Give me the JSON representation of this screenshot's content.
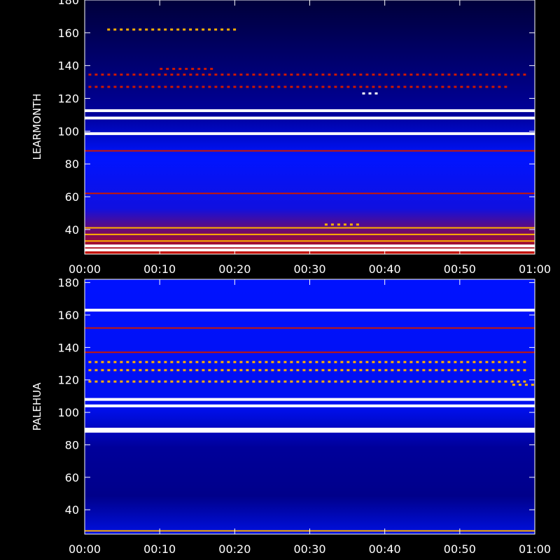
{
  "chart_data": [
    {
      "type": "heatmap",
      "ylabel": "LEARMONTH",
      "ylim": [
        25,
        180
      ],
      "yticks": [
        40,
        60,
        80,
        100,
        120,
        140,
        160,
        180
      ],
      "xticks": [
        "00:00",
        "00:10",
        "00:20",
        "00:30",
        "00:40",
        "00:50",
        "01:00"
      ],
      "xlim_minutes": [
        0,
        60
      ],
      "colormap": [
        "#00003a",
        "#0000ff",
        "#cc1800",
        "#ffb000",
        "#ffffff"
      ],
      "bands": [
        {
          "freq": 112.5,
          "intensity": 0.82
        },
        {
          "freq": 108,
          "intensity": 0.78
        },
        {
          "freq": 98.5,
          "intensity": 0.85
        },
        {
          "freq": 88,
          "intensity": 0.35
        },
        {
          "freq": 62,
          "intensity": 0.42
        },
        {
          "freq": 41,
          "intensity": 0.55
        },
        {
          "freq": 37,
          "intensity": 0.6
        },
        {
          "freq": 33,
          "intensity": 0.7
        },
        {
          "freq": 30,
          "intensity": 0.82
        },
        {
          "freq": 27.5,
          "intensity": 0.9
        }
      ],
      "bursts": [
        {
          "freq": 162,
          "t0": 3,
          "t1": 20,
          "intensity": 0.7
        },
        {
          "freq": 134.5,
          "t0": 0.5,
          "t1": 59,
          "intensity": 0.4
        },
        {
          "freq": 127,
          "t0": 0.5,
          "t1": 56,
          "intensity": 0.38
        },
        {
          "freq": 138,
          "t0": 10,
          "t1": 17,
          "intensity": 0.45
        },
        {
          "freq": 123,
          "t0": 37,
          "t1": 39,
          "intensity": 0.8
        },
        {
          "freq": 43,
          "t0": 32,
          "t1": 37,
          "intensity": 0.7
        }
      ]
    },
    {
      "type": "heatmap",
      "ylabel": "PALEHUA",
      "ylim": [
        25,
        182
      ],
      "yticks": [
        40,
        60,
        80,
        100,
        120,
        140,
        160,
        180
      ],
      "xticks": [
        "00:00",
        "00:10",
        "00:20",
        "00:30",
        "00:40",
        "00:50",
        "01:00"
      ],
      "xlim_minutes": [
        0,
        60
      ],
      "colormap": [
        "#00003a",
        "#0000ff",
        "#cc1800",
        "#ffb000",
        "#ffffff"
      ],
      "bands": [
        {
          "freq": 163,
          "intensity": 0.9
        },
        {
          "freq": 152,
          "intensity": 0.45
        },
        {
          "freq": 137,
          "intensity": 0.45
        },
        {
          "freq": 108,
          "intensity": 0.78
        },
        {
          "freq": 104,
          "intensity": 0.85
        },
        {
          "freq": 89,
          "intensity": 1.0
        },
        {
          "freq": 27,
          "intensity": 0.6
        }
      ],
      "bursts": [
        {
          "freq": 131,
          "t0": 0.5,
          "t1": 59,
          "intensity": 0.55
        },
        {
          "freq": 126,
          "t0": 0.5,
          "t1": 59,
          "intensity": 0.5
        },
        {
          "freq": 119,
          "t0": 0.5,
          "t1": 59,
          "intensity": 0.55
        },
        {
          "freq": 117,
          "t0": 57,
          "t1": 60,
          "intensity": 0.55
        }
      ]
    }
  ]
}
